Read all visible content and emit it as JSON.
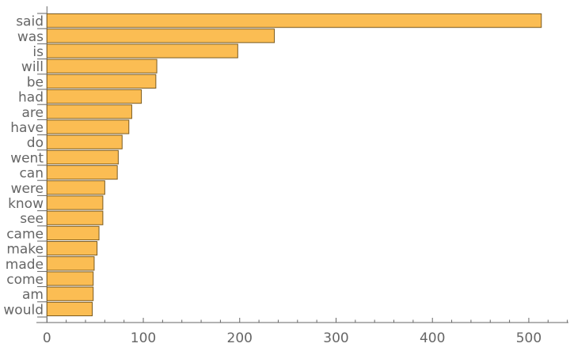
{
  "chart_data": {
    "type": "bar",
    "orientation": "horizontal",
    "categories": [
      "said",
      "was",
      "is",
      "will",
      "be",
      "had",
      "are",
      "have",
      "do",
      "went",
      "can",
      "were",
      "know",
      "see",
      "came",
      "make",
      "made",
      "come",
      "am",
      "would"
    ],
    "values": [
      513,
      236,
      198,
      114,
      113,
      98,
      88,
      85,
      78,
      74,
      73,
      60,
      58,
      58,
      54,
      52,
      49,
      48,
      48,
      47
    ],
    "xlim": [
      0,
      540
    ],
    "xticks": [
      0,
      100,
      200,
      300,
      400,
      500
    ],
    "title": "",
    "xlabel": "",
    "ylabel": "",
    "grid": false,
    "colors": {
      "bar": "#fbbd53",
      "bar_edge": "#7a5a20",
      "axis": "#666666"
    }
  }
}
